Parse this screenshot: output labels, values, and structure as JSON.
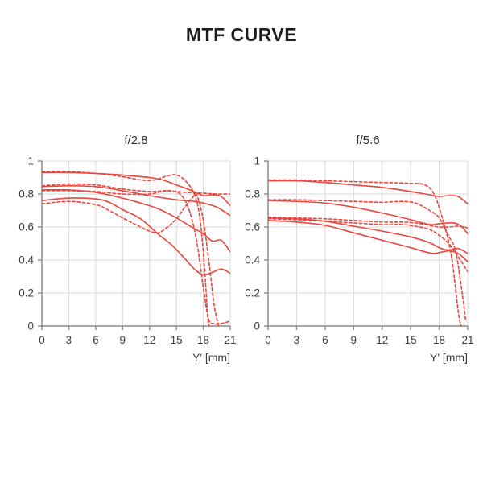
{
  "page": {
    "title": "MTF CURVE"
  },
  "colors": {
    "curve": "#e8463e",
    "grid": "#d9d9d9",
    "axis": "#8c8c8c",
    "text": "#3d3d3d",
    "title": "#1d1d1f"
  },
  "chart_data": [
    {
      "type": "line",
      "title": "f/2.8",
      "xlabel": "Y' [mm]",
      "ylabel": "",
      "xlim": [
        0,
        21
      ],
      "ylim": [
        0,
        1
      ],
      "x_ticks": [
        0,
        3,
        6,
        9,
        12,
        15,
        18,
        21
      ],
      "y_ticks": [
        0,
        0.2,
        0.4,
        0.6,
        0.8,
        1
      ],
      "grid": true,
      "legend": "none",
      "series": [
        {
          "name": "solid-1",
          "style": "solid",
          "points": [
            [
              0,
              0.93
            ],
            [
              3,
              0.93
            ],
            [
              6,
              0.925
            ],
            [
              9,
              0.915
            ],
            [
              12,
              0.9
            ],
            [
              13.5,
              0.885
            ],
            [
              15,
              0.855
            ],
            [
              16.5,
              0.825
            ],
            [
              18,
              0.79
            ],
            [
              19,
              0.795
            ],
            [
              20,
              0.785
            ],
            [
              21,
              0.73
            ]
          ]
        },
        {
          "name": "dashed-1",
          "style": "dashed",
          "points": [
            [
              0,
              0.935
            ],
            [
              3,
              0.935
            ],
            [
              6,
              0.925
            ],
            [
              9,
              0.905
            ],
            [
              11,
              0.885
            ],
            [
              12.5,
              0.885
            ],
            [
              14,
              0.91
            ],
            [
              15,
              0.915
            ],
            [
              16,
              0.88
            ],
            [
              17,
              0.8
            ],
            [
              17.6,
              0.66
            ],
            [
              18.1,
              0.38
            ],
            [
              18.5,
              0.05
            ],
            [
              18.7,
              0
            ]
          ]
        },
        {
          "name": "solid-2",
          "style": "solid",
          "points": [
            [
              0,
              0.845
            ],
            [
              3,
              0.85
            ],
            [
              6,
              0.845
            ],
            [
              9,
              0.82
            ],
            [
              12,
              0.79
            ],
            [
              15,
              0.765
            ],
            [
              17,
              0.755
            ],
            [
              18,
              0.745
            ],
            [
              19.5,
              0.72
            ],
            [
              21,
              0.67
            ]
          ]
        },
        {
          "name": "dashed-2",
          "style": "dashed",
          "points": [
            [
              0,
              0.85
            ],
            [
              3,
              0.86
            ],
            [
              6,
              0.855
            ],
            [
              9,
              0.83
            ],
            [
              12,
              0.815
            ],
            [
              14,
              0.82
            ],
            [
              16,
              0.81
            ],
            [
              18,
              0.805
            ],
            [
              19.5,
              0.8
            ],
            [
              21,
              0.8
            ]
          ]
        },
        {
          "name": "solid-3",
          "style": "solid",
          "points": [
            [
              0,
              0.825
            ],
            [
              3,
              0.825
            ],
            [
              6,
              0.81
            ],
            [
              9,
              0.775
            ],
            [
              11,
              0.745
            ],
            [
              13,
              0.71
            ],
            [
              15,
              0.655
            ],
            [
              17,
              0.59
            ],
            [
              18,
              0.56
            ],
            [
              19,
              0.515
            ],
            [
              20,
              0.52
            ],
            [
              21,
              0.45
            ]
          ]
        },
        {
          "name": "dashed-3",
          "style": "dashed",
          "points": [
            [
              0,
              0.82
            ],
            [
              3,
              0.82
            ],
            [
              6,
              0.815
            ],
            [
              9,
              0.8
            ],
            [
              12,
              0.8
            ],
            [
              14,
              0.82
            ],
            [
              15.5,
              0.795
            ],
            [
              16.5,
              0.69
            ],
            [
              17.3,
              0.5
            ],
            [
              18,
              0.23
            ],
            [
              18.6,
              0.04
            ],
            [
              19.2,
              0.015
            ],
            [
              20,
              0.015
            ],
            [
              21,
              0.03
            ]
          ]
        },
        {
          "name": "solid-4",
          "style": "solid",
          "points": [
            [
              0,
              0.76
            ],
            [
              3,
              0.775
            ],
            [
              6,
              0.77
            ],
            [
              7.5,
              0.75
            ],
            [
              9,
              0.705
            ],
            [
              11,
              0.65
            ],
            [
              13,
              0.555
            ],
            [
              14.5,
              0.49
            ],
            [
              16,
              0.405
            ],
            [
              17,
              0.345
            ],
            [
              18,
              0.31
            ],
            [
              19,
              0.325
            ],
            [
              20,
              0.345
            ],
            [
              21,
              0.32
            ]
          ]
        },
        {
          "name": "dashed-4",
          "style": "dashed",
          "points": [
            [
              0,
              0.74
            ],
            [
              3,
              0.755
            ],
            [
              6,
              0.735
            ],
            [
              7.5,
              0.7
            ],
            [
              9,
              0.655
            ],
            [
              11,
              0.6
            ],
            [
              12,
              0.575
            ],
            [
              13,
              0.565
            ],
            [
              14,
              0.6
            ],
            [
              15,
              0.65
            ],
            [
              16,
              0.725
            ],
            [
              16.8,
              0.78
            ],
            [
              17.3,
              0.79
            ],
            [
              18,
              0.64
            ],
            [
              18.6,
              0.4
            ],
            [
              19.2,
              0.13
            ],
            [
              19.7,
              0
            ]
          ]
        }
      ]
    },
    {
      "type": "line",
      "title": "f/5.6",
      "xlabel": "Y' [mm]",
      "ylabel": "",
      "xlim": [
        0,
        21
      ],
      "ylim": [
        0,
        1
      ],
      "x_ticks": [
        0,
        3,
        6,
        9,
        12,
        15,
        18,
        21
      ],
      "y_ticks": [
        0,
        0.2,
        0.4,
        0.6,
        0.8,
        1
      ],
      "grid": true,
      "legend": "none",
      "series": [
        {
          "name": "solid-1",
          "style": "solid",
          "points": [
            [
              0,
              0.88
            ],
            [
              3,
              0.88
            ],
            [
              6,
              0.87
            ],
            [
              9,
              0.855
            ],
            [
              12,
              0.84
            ],
            [
              15,
              0.815
            ],
            [
              17,
              0.795
            ],
            [
              18,
              0.785
            ],
            [
              19,
              0.79
            ],
            [
              20,
              0.785
            ],
            [
              21,
              0.74
            ]
          ]
        },
        {
          "name": "dashed-1",
          "style": "dashed",
          "points": [
            [
              0,
              0.885
            ],
            [
              3,
              0.885
            ],
            [
              6,
              0.88
            ],
            [
              9,
              0.875
            ],
            [
              12,
              0.87
            ],
            [
              15,
              0.865
            ],
            [
              16.5,
              0.855
            ],
            [
              17.5,
              0.795
            ],
            [
              18.5,
              0.62
            ],
            [
              19.3,
              0.42
            ],
            [
              20,
              0.09
            ],
            [
              20.3,
              0
            ]
          ]
        },
        {
          "name": "solid-2",
          "style": "solid",
          "points": [
            [
              0,
              0.76
            ],
            [
              3,
              0.755
            ],
            [
              6,
              0.745
            ],
            [
              9,
              0.72
            ],
            [
              12,
              0.685
            ],
            [
              15,
              0.645
            ],
            [
              17,
              0.615
            ],
            [
              18,
              0.62
            ],
            [
              19.5,
              0.625
            ],
            [
              20.3,
              0.605
            ],
            [
              21,
              0.56
            ]
          ]
        },
        {
          "name": "dashed-2",
          "style": "dashed",
          "points": [
            [
              0,
              0.765
            ],
            [
              3,
              0.765
            ],
            [
              6,
              0.76
            ],
            [
              9,
              0.755
            ],
            [
              12,
              0.75
            ],
            [
              14,
              0.755
            ],
            [
              15.5,
              0.745
            ],
            [
              17,
              0.7
            ],
            [
              18,
              0.655
            ],
            [
              19,
              0.545
            ],
            [
              19.7,
              0.46
            ],
            [
              20.3,
              0.25
            ],
            [
              20.8,
              0.03
            ]
          ]
        },
        {
          "name": "solid-3",
          "style": "solid",
          "points": [
            [
              0,
              0.655
            ],
            [
              3,
              0.65
            ],
            [
              6,
              0.635
            ],
            [
              9,
              0.605
            ],
            [
              12,
              0.575
            ],
            [
              15,
              0.54
            ],
            [
              17,
              0.505
            ],
            [
              18,
              0.475
            ],
            [
              19,
              0.46
            ],
            [
              20,
              0.47
            ],
            [
              21,
              0.44
            ]
          ]
        },
        {
          "name": "dashed-3",
          "style": "dashed",
          "points": [
            [
              0,
              0.66
            ],
            [
              3,
              0.655
            ],
            [
              6,
              0.65
            ],
            [
              9,
              0.64
            ],
            [
              12,
              0.63
            ],
            [
              14,
              0.63
            ],
            [
              15.5,
              0.625
            ],
            [
              17,
              0.61
            ],
            [
              18,
              0.6
            ],
            [
              19,
              0.6
            ],
            [
              20,
              0.605
            ],
            [
              21,
              0.595
            ]
          ]
        },
        {
          "name": "solid-4",
          "style": "solid",
          "points": [
            [
              0,
              0.64
            ],
            [
              3,
              0.63
            ],
            [
              6,
              0.61
            ],
            [
              9,
              0.565
            ],
            [
              12,
              0.52
            ],
            [
              15,
              0.475
            ],
            [
              16.5,
              0.45
            ],
            [
              17.5,
              0.44
            ],
            [
              19,
              0.455
            ],
            [
              20,
              0.44
            ],
            [
              21,
              0.39
            ]
          ]
        },
        {
          "name": "dashed-4",
          "style": "dashed",
          "points": [
            [
              0,
              0.65
            ],
            [
              3,
              0.645
            ],
            [
              6,
              0.635
            ],
            [
              9,
              0.625
            ],
            [
              12,
              0.615
            ],
            [
              14,
              0.615
            ],
            [
              15.5,
              0.605
            ],
            [
              17,
              0.585
            ],
            [
              18,
              0.55
            ],
            [
              19,
              0.5
            ],
            [
              20,
              0.42
            ],
            [
              21,
              0.33
            ]
          ]
        }
      ]
    }
  ]
}
